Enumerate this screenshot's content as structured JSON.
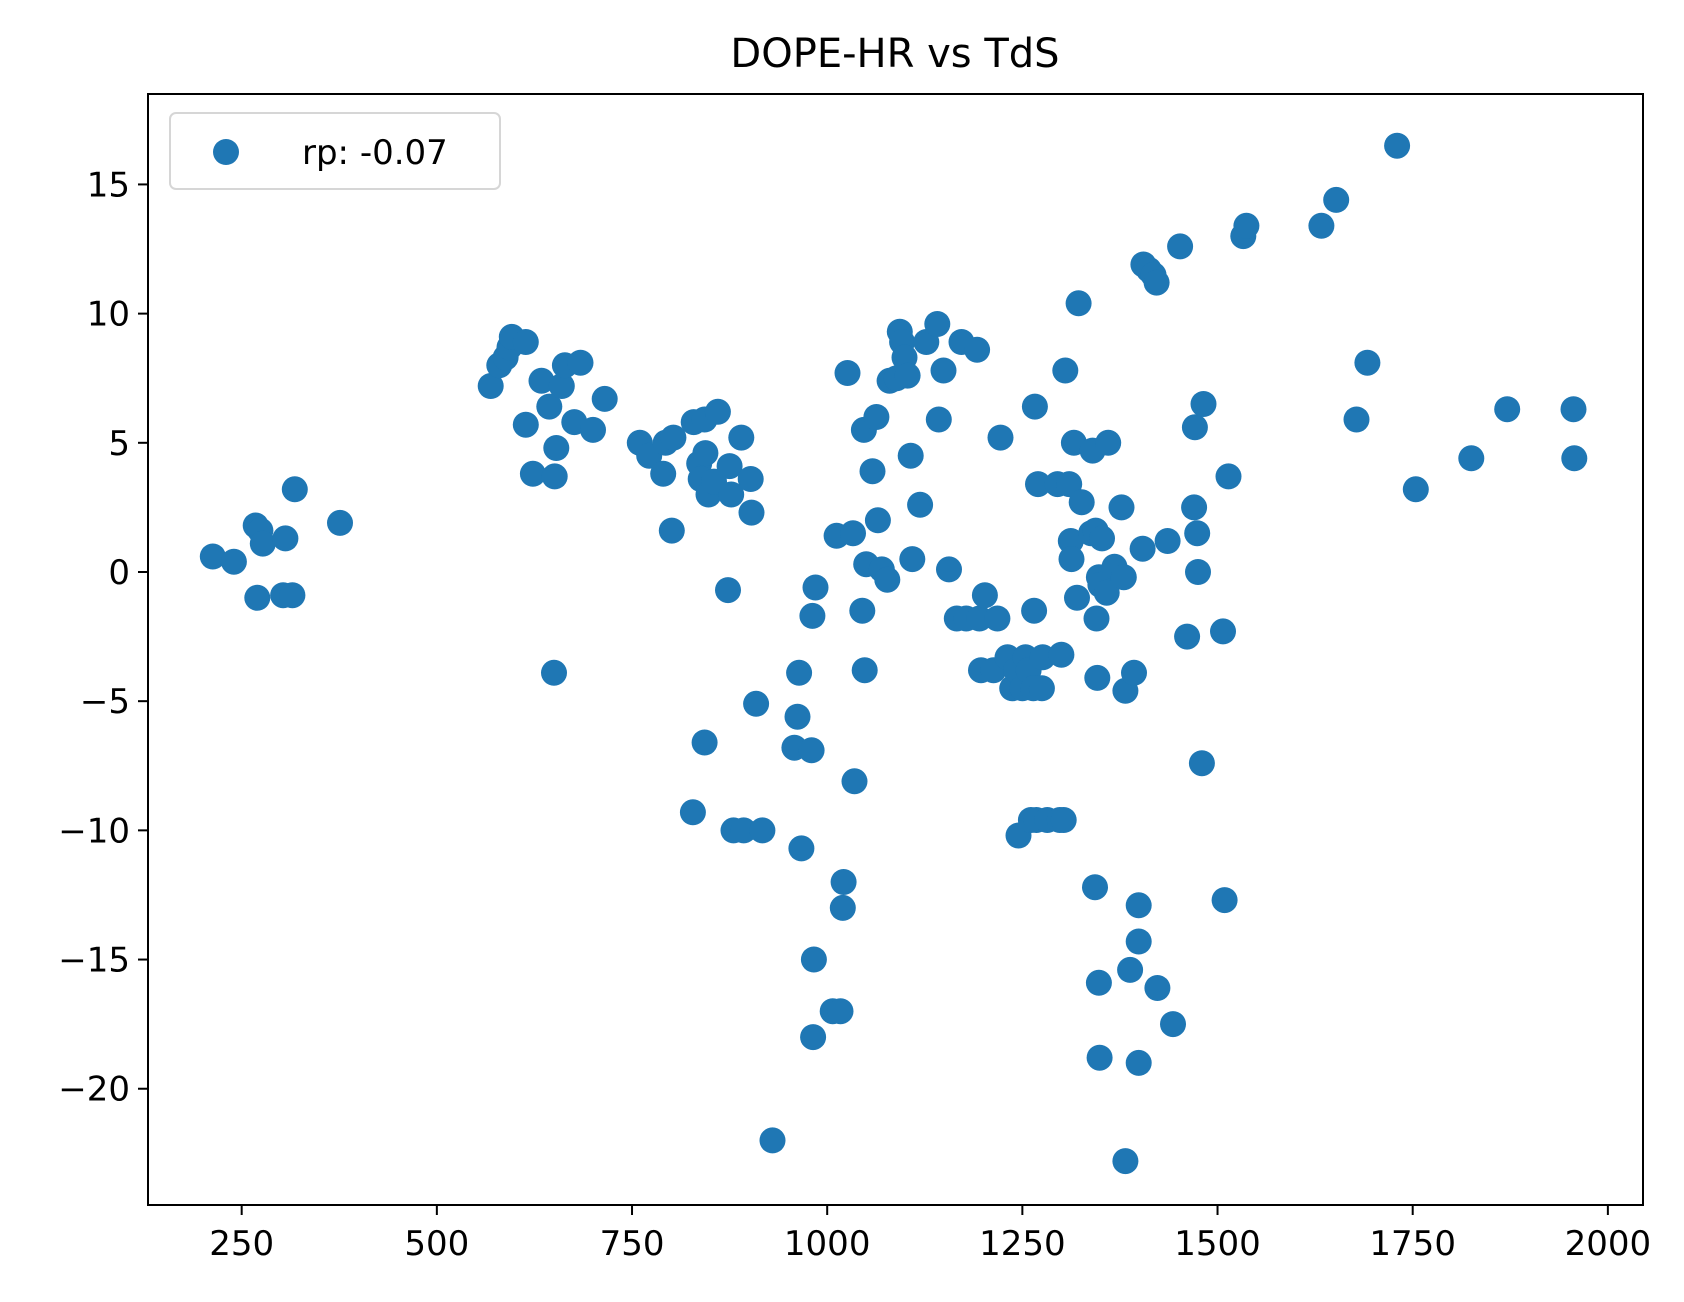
{
  "chart_data": {
    "type": "scatter",
    "title": "DOPE-HR vs TdS",
    "xlabel": "",
    "ylabel": "",
    "xlim": [
      130,
      2045
    ],
    "ylim": [
      -24.5,
      18.5
    ],
    "xticks": [
      250,
      500,
      750,
      1000,
      1250,
      1500,
      1750,
      2000
    ],
    "yticks": [
      15,
      10,
      5,
      0,
      -5,
      -10,
      -15,
      -20
    ],
    "yticks_text": [
      "15",
      "10",
      "5",
      "0",
      "−5",
      "−10",
      "−15",
      "−20"
    ],
    "grid": false,
    "legend": {
      "placement": "top-left",
      "entries": [
        "rp: -0.07"
      ]
    },
    "series": [
      {
        "name": "rp: -0.07",
        "color": "#1f77b4",
        "points": [
          [
            213,
            0.6
          ],
          [
            240,
            0.4
          ],
          [
            268,
            1.8
          ],
          [
            274,
            1.6
          ],
          [
            277,
            1.1
          ],
          [
            270,
            -1.0
          ],
          [
            303,
            -0.9
          ],
          [
            306,
            1.3
          ],
          [
            315,
            -0.9
          ],
          [
            318,
            3.2
          ],
          [
            376,
            1.9
          ],
          [
            569,
            7.2
          ],
          [
            580,
            8.0
          ],
          [
            588,
            8.3
          ],
          [
            593,
            8.7
          ],
          [
            596,
            9.1
          ],
          [
            614,
            8.9
          ],
          [
            614,
            5.7
          ],
          [
            623,
            3.8
          ],
          [
            634,
            7.4
          ],
          [
            644,
            6.4
          ],
          [
            651,
            3.7
          ],
          [
            653,
            4.8
          ],
          [
            650,
            -3.9
          ],
          [
            660,
            7.2
          ],
          [
            664,
            8.0
          ],
          [
            676,
            5.8
          ],
          [
            684,
            8.1
          ],
          [
            700,
            5.5
          ],
          [
            715,
            6.7
          ],
          [
            760,
            5.0
          ],
          [
            772,
            4.5
          ],
          [
            790,
            3.8
          ],
          [
            793,
            5.0
          ],
          [
            803,
            5.2
          ],
          [
            801,
            1.6
          ],
          [
            829,
            5.8
          ],
          [
            836,
            4.2
          ],
          [
            838,
            3.6
          ],
          [
            843,
            5.9
          ],
          [
            844,
            4.6
          ],
          [
            848,
            3.0
          ],
          [
            855,
            3.5
          ],
          [
            860,
            6.2
          ],
          [
            875,
            4.1
          ],
          [
            877,
            3.0
          ],
          [
            873,
            -0.7
          ],
          [
            890,
            5.2
          ],
          [
            902,
            3.6
          ],
          [
            903,
            2.3
          ],
          [
            909,
            -5.1
          ],
          [
            828,
            -9.3
          ],
          [
            843,
            -6.6
          ],
          [
            880,
            -10.0
          ],
          [
            893,
            -10.0
          ],
          [
            917,
            -10.0
          ],
          [
            930,
            -22.0
          ],
          [
            958,
            -6.8
          ],
          [
            962,
            -5.6
          ],
          [
            964,
            -3.9
          ],
          [
            967,
            -10.7
          ],
          [
            980,
            -6.9
          ],
          [
            981,
            -1.7
          ],
          [
            985,
            -0.6
          ],
          [
            982,
            -18.0
          ],
          [
            983,
            -15.0
          ],
          [
            1007,
            -17.0
          ],
          [
            1017,
            -17.0
          ],
          [
            1021,
            -12.0
          ],
          [
            1020,
            -13.0
          ],
          [
            1035,
            -8.1
          ],
          [
            1012,
            1.4
          ],
          [
            1033,
            1.5
          ],
          [
            1026,
            7.7
          ],
          [
            1045,
            -1.5
          ],
          [
            1047,
            5.5
          ],
          [
            1050,
            0.3
          ],
          [
            1048,
            -3.8
          ],
          [
            1058,
            3.9
          ],
          [
            1063,
            6.0
          ],
          [
            1065,
            2.0
          ],
          [
            1070,
            0.1
          ],
          [
            1077,
            -0.3
          ],
          [
            1080,
            7.4
          ],
          [
            1089,
            7.5
          ],
          [
            1093,
            9.3
          ],
          [
            1096,
            8.9
          ],
          [
            1099,
            8.3
          ],
          [
            1103,
            7.6
          ],
          [
            1107,
            4.5
          ],
          [
            1109,
            0.5
          ],
          [
            1119,
            2.6
          ],
          [
            1127,
            8.9
          ],
          [
            1141,
            9.6
          ],
          [
            1143,
            5.9
          ],
          [
            1149,
            7.8
          ],
          [
            1156,
            0.1
          ],
          [
            1166,
            -1.8
          ],
          [
            1172,
            8.9
          ],
          [
            1178,
            -1.8
          ],
          [
            1192,
            8.6
          ],
          [
            1195,
            -1.8
          ],
          [
            1197,
            -3.8
          ],
          [
            1202,
            -0.9
          ],
          [
            1213,
            -3.8
          ],
          [
            1218,
            -1.8
          ],
          [
            1222,
            5.2
          ],
          [
            1231,
            -3.3
          ],
          [
            1237,
            -4.5
          ],
          [
            1242,
            -3.8
          ],
          [
            1245,
            -10.2
          ],
          [
            1250,
            -4.5
          ],
          [
            1254,
            -3.3
          ],
          [
            1258,
            -3.8
          ],
          [
            1261,
            -9.6
          ],
          [
            1264,
            -4.5
          ],
          [
            1265,
            -1.5
          ],
          [
            1266,
            6.4
          ],
          [
            1268,
            -9.6
          ],
          [
            1270,
            3.4
          ],
          [
            1275,
            -4.5
          ],
          [
            1276,
            -3.3
          ],
          [
            1282,
            -9.6
          ],
          [
            1295,
            3.4
          ],
          [
            1298,
            -9.6
          ],
          [
            1300,
            -3.2
          ],
          [
            1303,
            -9.6
          ],
          [
            1305,
            7.8
          ],
          [
            1310,
            3.4
          ],
          [
            1312,
            1.2
          ],
          [
            1313,
            0.5
          ],
          [
            1316,
            5.0
          ],
          [
            1320,
            -1.0
          ],
          [
            1322,
            10.4
          ],
          [
            1326,
            2.7
          ],
          [
            1338,
            1.5
          ],
          [
            1340,
            4.7
          ],
          [
            1344,
            1.6
          ],
          [
            1345,
            -1.8
          ],
          [
            1343,
            -12.2
          ],
          [
            1346,
            -4.1
          ],
          [
            1348,
            -15.9
          ],
          [
            1349,
            -18.8
          ],
          [
            1348,
            -0.2
          ],
          [
            1350,
            -0.5
          ],
          [
            1352,
            1.3
          ],
          [
            1358,
            -0.8
          ],
          [
            1360,
            5.0
          ],
          [
            1368,
            0.2
          ],
          [
            1377,
            2.5
          ],
          [
            1380,
            -0.2
          ],
          [
            1382,
            -4.6
          ],
          [
            1382,
            -22.8
          ],
          [
            1388,
            -15.4
          ],
          [
            1393,
            -3.9
          ],
          [
            1399,
            -12.9
          ],
          [
            1399,
            -14.3
          ],
          [
            1399,
            -19.0
          ],
          [
            1404,
            0.9
          ],
          [
            1405,
            11.9
          ],
          [
            1412,
            11.7
          ],
          [
            1418,
            11.5
          ],
          [
            1422,
            11.2
          ],
          [
            1423,
            -16.1
          ],
          [
            1436,
            1.2
          ],
          [
            1443,
            -17.5
          ],
          [
            1452,
            12.6
          ],
          [
            1461,
            -2.5
          ],
          [
            1470,
            2.5
          ],
          [
            1471,
            5.6
          ],
          [
            1474,
            1.5
          ],
          [
            1475,
            0.0
          ],
          [
            1480,
            -7.4
          ],
          [
            1482,
            6.5
          ],
          [
            1507,
            -2.3
          ],
          [
            1509,
            -12.7
          ],
          [
            1514,
            3.7
          ],
          [
            1533,
            13.0
          ],
          [
            1537,
            13.4
          ],
          [
            1633,
            13.4
          ],
          [
            1652,
            14.4
          ],
          [
            1678,
            5.9
          ],
          [
            1692,
            8.1
          ],
          [
            1730,
            16.5
          ],
          [
            1754,
            3.2
          ],
          [
            1825,
            4.4
          ],
          [
            1871,
            6.3
          ],
          [
            1956,
            6.3
          ],
          [
            1957,
            4.4
          ]
        ]
      }
    ]
  }
}
